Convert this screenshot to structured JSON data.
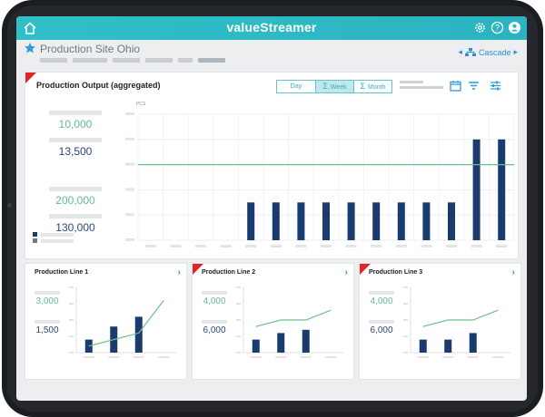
{
  "app": {
    "brand": "valueStreamer"
  },
  "header": {
    "site_title": "Production Site Ohio",
    "cascade_label": "Cascade"
  },
  "main": {
    "title": "Production Output (aggregated)",
    "views": [
      "Day",
      "Week",
      "Month"
    ],
    "selected_view": "Week",
    "kpis": [
      "10,000",
      "13,500",
      "200,000",
      "130,000"
    ],
    "unit_label": "PCS",
    "colors": {
      "bar": "#1a3b6e",
      "target": "#6cc08a",
      "teal_text": "#64bc98",
      "navy_text": "#2b4a78",
      "corner": "#e0242c"
    }
  },
  "lines": [
    {
      "title": "Production Line 1",
      "kpis": [
        "3,000",
        "1,500"
      ]
    },
    {
      "title": "Production Line 2",
      "kpis": [
        "4,000",
        "6,000"
      ]
    },
    {
      "title": "Production Line 3",
      "kpis": [
        "4,000",
        "6,000"
      ]
    }
  ],
  "chart_data": [
    {
      "type": "bar",
      "title": "Production Output (aggregated)",
      "ylabel": "PCS",
      "categories": [
        "",
        "",
        "",
        "",
        "",
        "",
        "",
        "",
        "",
        "",
        "",
        "",
        "",
        "",
        ""
      ],
      "series": [
        {
          "values": [
            0,
            0,
            0,
            0,
            3,
            3,
            3,
            3,
            3,
            3,
            3,
            3,
            3,
            8,
            8
          ]
        }
      ],
      "target_line": 6,
      "ylim": [
        0,
        10
      ],
      "grid": true
    },
    {
      "type": "bar",
      "title": "Production Line 1",
      "series": [
        {
          "values": [
            2,
            4,
            5.5,
            0
          ]
        }
      ],
      "line": [
        1,
        2,
        3,
        8
      ],
      "ylim": [
        0,
        10
      ]
    },
    {
      "type": "bar",
      "title": "Production Line 2",
      "series": [
        {
          "values": [
            2,
            3,
            3.5,
            0
          ]
        }
      ],
      "line": [
        4,
        5,
        5,
        6.5
      ],
      "ylim": [
        0,
        10
      ]
    },
    {
      "type": "bar",
      "title": "Production Line 3",
      "series": [
        {
          "values": [
            2,
            2,
            3,
            0
          ]
        }
      ],
      "line": [
        4,
        5,
        5,
        6.5
      ],
      "ylim": [
        0,
        10
      ]
    }
  ]
}
